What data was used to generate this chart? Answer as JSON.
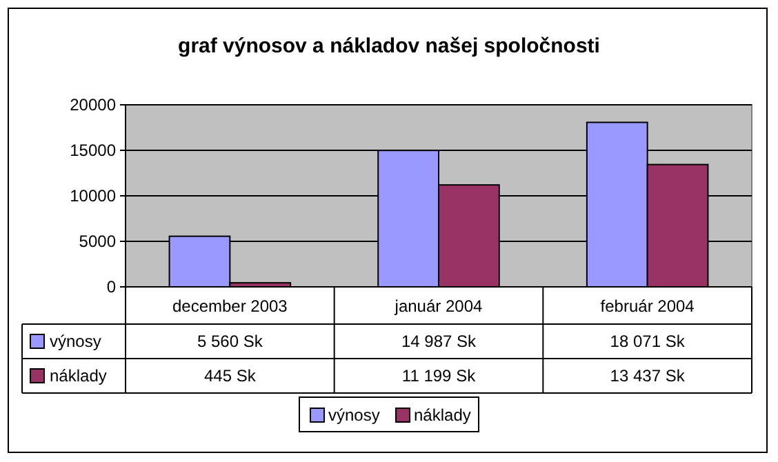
{
  "chart_data": {
    "type": "bar",
    "title": "graf výnosov a nákladov našej spoločnosti",
    "categories": [
      "december 2003",
      "január 2004",
      "február 2004"
    ],
    "series": [
      {
        "name": "výnosy",
        "color": "#9999ff",
        "values": [
          5560,
          14987,
          18071
        ],
        "value_labels": [
          "5 560 Sk",
          "14 987 Sk",
          "18 071 Sk"
        ]
      },
      {
        "name": "náklady",
        "color": "#993366",
        "values": [
          445,
          11199,
          13437
        ],
        "value_labels": [
          "445 Sk",
          "11 199 Sk",
          "13 437 Sk"
        ]
      }
    ],
    "ylim": [
      0,
      20000
    ],
    "yticks": [
      0,
      5000,
      10000,
      15000,
      20000
    ],
    "grid": "y",
    "legend": "bottom"
  }
}
